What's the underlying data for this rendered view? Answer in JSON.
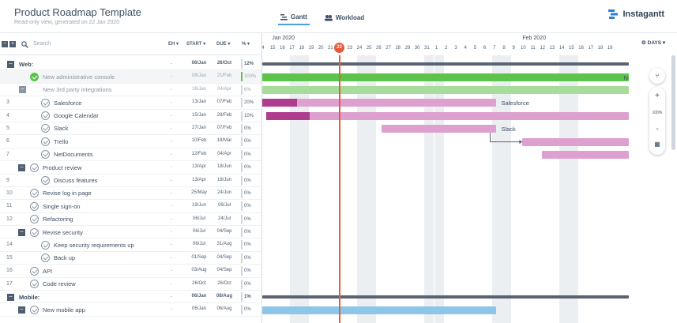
{
  "header": {
    "title": "Product Roadmap Template",
    "subtitle": "Read-only view, generated on 22 Jan 2020",
    "tabs": [
      {
        "label": "Gantt",
        "active": true
      },
      {
        "label": "Workload",
        "active": false
      }
    ],
    "logo": "Instagantt"
  },
  "grid": {
    "search_placeholder": "Search",
    "columns": {
      "eh": "EH",
      "start": "START",
      "due": "DUE",
      "pct": "%"
    },
    "expand_all": "+",
    "collapse_all": "−"
  },
  "rows": [
    {
      "type": "group",
      "num": "",
      "name": "Web:",
      "eh": "-",
      "start": "06/Jan",
      "due": "26/Oct",
      "pct": "12%"
    },
    {
      "type": "task",
      "num": "",
      "name": "New administrative console",
      "eh": "-",
      "start": "06/Jan",
      "due": "21/Feb",
      "pct": "100%",
      "done": true,
      "indent": 1,
      "highlight": true,
      "muted": true
    },
    {
      "type": "task",
      "num": "",
      "name": "New 3rd party integrations",
      "eh": "-",
      "start": "16/Jan",
      "due": "04/Apr",
      "pct": "6%",
      "done": false,
      "indent": 1,
      "muted": true,
      "collapsed": true
    },
    {
      "type": "task",
      "num": "3",
      "name": "Salesforce",
      "eh": "-",
      "start": "13/Jan",
      "due": "07/Feb",
      "pct": "20%",
      "indent": 2
    },
    {
      "type": "task",
      "num": "4",
      "name": "Google Calendar",
      "eh": "-",
      "start": "15/Jan",
      "due": "28/Feb",
      "pct": "10%",
      "indent": 2
    },
    {
      "type": "task",
      "num": "5",
      "name": "Slack",
      "eh": "-",
      "start": "27/Jan",
      "due": "07/Feb",
      "pct": "0%",
      "indent": 2
    },
    {
      "type": "task",
      "num": "6",
      "name": "Trello",
      "eh": "-",
      "start": "10/Feb",
      "due": "18/Mar",
      "pct": "0%",
      "indent": 2
    },
    {
      "type": "task",
      "num": "7",
      "name": "NetDocuments",
      "eh": "-",
      "start": "12/Feb",
      "due": "04/Apr",
      "pct": "0%",
      "indent": 2
    },
    {
      "type": "subgroup",
      "num": "",
      "name": "Product review",
      "eh": "-",
      "start": "13/Apr",
      "due": "18/Jun",
      "pct": "0%",
      "indent": 1
    },
    {
      "type": "task",
      "num": "9",
      "name": "Discuss features",
      "eh": "-",
      "start": "13/Apr",
      "due": "18/Jun",
      "pct": "0%",
      "indent": 2
    },
    {
      "type": "task",
      "num": "10",
      "name": "Revise log in page",
      "eh": "-",
      "start": "25/May",
      "due": "24/Jun",
      "pct": "0%",
      "indent": 1
    },
    {
      "type": "task",
      "num": "11",
      "name": "Single sign-on",
      "eh": "-",
      "start": "19/Jun",
      "due": "06/Jul",
      "pct": "0%",
      "indent": 1
    },
    {
      "type": "task",
      "num": "12",
      "name": "Refactoring",
      "eh": "-",
      "start": "06/Jul",
      "due": "24/Jul",
      "pct": "0%",
      "indent": 1
    },
    {
      "type": "subgroup",
      "num": "",
      "name": "Revise security",
      "eh": "-",
      "start": "06/Jul",
      "due": "04/Sep",
      "pct": "0%",
      "indent": 1
    },
    {
      "type": "task",
      "num": "14",
      "name": "Keep security requirements up",
      "eh": "-",
      "start": "06/Jul",
      "due": "31/Aug",
      "pct": "0%",
      "indent": 2
    },
    {
      "type": "task",
      "num": "15",
      "name": "Back up",
      "eh": "-",
      "start": "01/Sep",
      "due": "04/Sep",
      "pct": "0%",
      "indent": 2
    },
    {
      "type": "task",
      "num": "16",
      "name": "API",
      "eh": "-",
      "start": "03/Aug",
      "due": "04/Sep",
      "pct": "0%",
      "indent": 1
    },
    {
      "type": "task",
      "num": "17",
      "name": "Code review",
      "eh": "-",
      "start": "26/Oct",
      "due": "26/Oct",
      "pct": "0%",
      "indent": 1
    },
    {
      "type": "group",
      "num": "",
      "name": "Mobile:",
      "eh": "-",
      "start": "06/Jan",
      "due": "08/Aug",
      "pct": "1%"
    },
    {
      "type": "subgroup",
      "num": "",
      "name": "New mobile app",
      "eh": "-",
      "start": "06/Jan",
      "due": "06/Aug",
      "pct": "0%",
      "indent": 1
    }
  ],
  "timeline": {
    "months": [
      {
        "label": "Jan 2020",
        "day_index": 1
      },
      {
        "label": "Feb 2020",
        "day_index": 27
      }
    ],
    "days": [
      "4",
      "15",
      "16",
      "17",
      "18",
      "19",
      "20",
      "21",
      "22",
      "23",
      "24",
      "25",
      "26",
      "27",
      "28",
      "29",
      "30",
      "31",
      "1",
      "2",
      "3",
      "4",
      "5",
      "6",
      "7",
      "8",
      "9",
      "10",
      "11",
      "12",
      "13",
      "14",
      "15",
      "16",
      "17",
      "18",
      "19"
    ],
    "weekend_indices": [
      3,
      4,
      10,
      11,
      17,
      18,
      24,
      25,
      31,
      32
    ],
    "today_index": 8,
    "today_label": "22",
    "view_mode": "DAYS"
  },
  "bars": [
    {
      "row": 0,
      "start": 0,
      "end": 38,
      "color": "#5a6470",
      "height": 4
    },
    {
      "row": 1,
      "start": 0,
      "end": 38,
      "color": "#5cc44a",
      "label": "N",
      "label_at": "end"
    },
    {
      "row": 2,
      "start": 0,
      "end": 38,
      "color": "#a8dc9a"
    },
    {
      "row": 3,
      "start": 0,
      "end": 24.3,
      "color": "#dda0cf",
      "progress": 0.15,
      "progress_color": "#b03c8f",
      "label": "Salesforce"
    },
    {
      "row": 4,
      "start": 0.4,
      "end": 38,
      "color": "#dda0cf",
      "progress": 0.12,
      "progress_color": "#b03c8f"
    },
    {
      "row": 5,
      "start": 12.4,
      "end": 24.3,
      "color": "#dda0cf",
      "label": "Slack"
    },
    {
      "row": 6,
      "start": 27,
      "end": 38,
      "color": "#dda0cf"
    },
    {
      "row": 7,
      "start": 29,
      "end": 38,
      "color": "#dda0cf"
    },
    {
      "row": 18,
      "start": 0,
      "end": 38,
      "color": "#5a6470",
      "height": 4
    },
    {
      "row": 19,
      "start": 0,
      "end": 24.3,
      "color": "#8ec6ea"
    }
  ],
  "zoom": {
    "zoom_in": "+",
    "level": "100%",
    "zoom_out": "-"
  }
}
